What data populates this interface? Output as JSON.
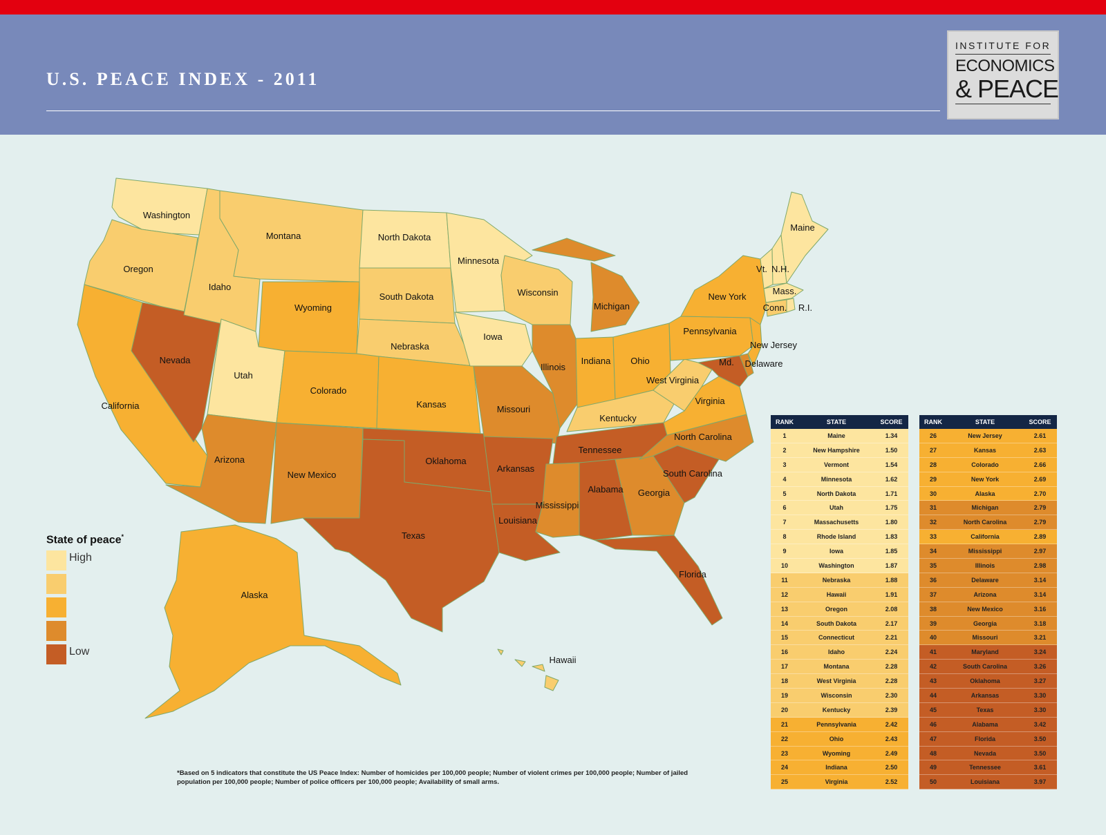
{
  "header": {
    "title": "U.S. PEACE INDEX - 2011",
    "logo": {
      "line1": "INSTITUTE FOR",
      "line2": "ECONOMICS",
      "line3": "& PEACE"
    }
  },
  "colors": {
    "top_bar": "#e3000f",
    "header_band": "#7889ba",
    "background": "#e3efee",
    "table_header": "#142645",
    "tier_1": "#fde59f",
    "tier_2": "#f9cd6e",
    "tier_3": "#f7b032",
    "tier_4": "#de8b2c",
    "tier_5": "#c45d25"
  },
  "legend": {
    "title": "State of peace",
    "title_marker": "*",
    "items": [
      {
        "label": "High",
        "color": "#fde59f"
      },
      {
        "label": "",
        "color": "#f9cd6e"
      },
      {
        "label": "",
        "color": "#f7b032"
      },
      {
        "label": "",
        "color": "#de8b2c"
      },
      {
        "label": "Low",
        "color": "#c45d25"
      }
    ]
  },
  "map_labels": [
    "Washington",
    "Oregon",
    "California",
    "Nevada",
    "Idaho",
    "Montana",
    "Wyoming",
    "Utah",
    "Arizona",
    "Colorado",
    "New Mexico",
    "North Dakota",
    "South Dakota",
    "Nebraska",
    "Kansas",
    "Oklahoma",
    "Texas",
    "Minnesota",
    "Iowa",
    "Missouri",
    "Arkansas",
    "Louisiana",
    "Wisconsin",
    "Illinois",
    "Michigan",
    "Indiana",
    "Ohio",
    "Kentucky",
    "Tennessee",
    "Mississippi",
    "Alabama",
    "Georgia",
    "Florida",
    "South Carolina",
    "North Carolina",
    "Virginia",
    "West Virginia",
    "Pennsylvania",
    "New York",
    "Maine",
    "Vt.",
    "N.H.",
    "Mass.",
    "Conn.",
    "R.I.",
    "New Jersey",
    "Delaware",
    "Md.",
    "Alaska",
    "Hawaii"
  ],
  "table": {
    "headers": {
      "rank": "RANK",
      "state": "STATE",
      "score": "SCORE"
    },
    "rows": [
      {
        "rank": "1",
        "state": "Maine",
        "score": "1.34",
        "tier": 1
      },
      {
        "rank": "2",
        "state": "New Hampshire",
        "score": "1.50",
        "tier": 1
      },
      {
        "rank": "3",
        "state": "Vermont",
        "score": "1.54",
        "tier": 1
      },
      {
        "rank": "4",
        "state": "Minnesota",
        "score": "1.62",
        "tier": 1
      },
      {
        "rank": "5",
        "state": "North Dakota",
        "score": "1.71",
        "tier": 1
      },
      {
        "rank": "6",
        "state": "Utah",
        "score": "1.75",
        "tier": 1
      },
      {
        "rank": "7",
        "state": "Massachusetts",
        "score": "1.80",
        "tier": 1
      },
      {
        "rank": "8",
        "state": "Rhode Island",
        "score": "1.83",
        "tier": 1
      },
      {
        "rank": "9",
        "state": "Iowa",
        "score": "1.85",
        "tier": 1
      },
      {
        "rank": "10",
        "state": "Washington",
        "score": "1.87",
        "tier": 1
      },
      {
        "rank": "11",
        "state": "Nebraska",
        "score": "1.88",
        "tier": 2
      },
      {
        "rank": "12",
        "state": "Hawaii",
        "score": "1.91",
        "tier": 2
      },
      {
        "rank": "13",
        "state": "Oregon",
        "score": "2.08",
        "tier": 2
      },
      {
        "rank": "14",
        "state": "South Dakota",
        "score": "2.17",
        "tier": 2
      },
      {
        "rank": "15",
        "state": "Connecticut",
        "score": "2.21",
        "tier": 2
      },
      {
        "rank": "16",
        "state": "Idaho",
        "score": "2.24",
        "tier": 2
      },
      {
        "rank": "17",
        "state": "Montana",
        "score": "2.28",
        "tier": 2
      },
      {
        "rank": "18",
        "state": "West Virginia",
        "score": "2.28",
        "tier": 2
      },
      {
        "rank": "19",
        "state": "Wisconsin",
        "score": "2.30",
        "tier": 2
      },
      {
        "rank": "20",
        "state": "Kentucky",
        "score": "2.39",
        "tier": 2
      },
      {
        "rank": "21",
        "state": "Pennsylvania",
        "score": "2.42",
        "tier": 3
      },
      {
        "rank": "22",
        "state": "Ohio",
        "score": "2.43",
        "tier": 3
      },
      {
        "rank": "23",
        "state": "Wyoming",
        "score": "2.49",
        "tier": 3
      },
      {
        "rank": "24",
        "state": "Indiana",
        "score": "2.50",
        "tier": 3
      },
      {
        "rank": "25",
        "state": "Virginia",
        "score": "2.52",
        "tier": 3
      },
      {
        "rank": "26",
        "state": "New Jersey",
        "score": "2.61",
        "tier": 3
      },
      {
        "rank": "27",
        "state": "Kansas",
        "score": "2.63",
        "tier": 3
      },
      {
        "rank": "28",
        "state": "Colorado",
        "score": "2.66",
        "tier": 3
      },
      {
        "rank": "29",
        "state": "New York",
        "score": "2.69",
        "tier": 3
      },
      {
        "rank": "30",
        "state": "Alaska",
        "score": "2.70",
        "tier": 3
      },
      {
        "rank": "31",
        "state": "Michigan",
        "score": "2.79",
        "tier": 4
      },
      {
        "rank": "32",
        "state": "North Carolina",
        "score": "2.79",
        "tier": 4
      },
      {
        "rank": "33",
        "state": "California",
        "score": "2.89",
        "tier": 3
      },
      {
        "rank": "34",
        "state": "Mississippi",
        "score": "2.97",
        "tier": 4
      },
      {
        "rank": "35",
        "state": "Illinois",
        "score": "2.98",
        "tier": 4
      },
      {
        "rank": "36",
        "state": "Delaware",
        "score": "3.14",
        "tier": 4
      },
      {
        "rank": "37",
        "state": "Arizona",
        "score": "3.14",
        "tier": 4
      },
      {
        "rank": "38",
        "state": "New Mexico",
        "score": "3.16",
        "tier": 4
      },
      {
        "rank": "39",
        "state": "Georgia",
        "score": "3.18",
        "tier": 4
      },
      {
        "rank": "40",
        "state": "Missouri",
        "score": "3.21",
        "tier": 4
      },
      {
        "rank": "41",
        "state": "Maryland",
        "score": "3.24",
        "tier": 5
      },
      {
        "rank": "42",
        "state": "South Carolina",
        "score": "3.26",
        "tier": 5
      },
      {
        "rank": "43",
        "state": "Oklahoma",
        "score": "3.27",
        "tier": 5
      },
      {
        "rank": "44",
        "state": "Arkansas",
        "score": "3.30",
        "tier": 5
      },
      {
        "rank": "45",
        "state": "Texas",
        "score": "3.30",
        "tier": 5
      },
      {
        "rank": "46",
        "state": "Alabama",
        "score": "3.42",
        "tier": 5
      },
      {
        "rank": "47",
        "state": "Florida",
        "score": "3.50",
        "tier": 5
      },
      {
        "rank": "48",
        "state": "Nevada",
        "score": "3.50",
        "tier": 5
      },
      {
        "rank": "49",
        "state": "Tennessee",
        "score": "3.61",
        "tier": 5
      },
      {
        "rank": "50",
        "state": "Louisiana",
        "score": "3.97",
        "tier": 5
      }
    ]
  },
  "footnote": "*Based on 5 indicators that constitute the US Peace Index: Number of homicides per 100,000 people; Number of violent crimes per 100,000 people; Number of jailed population per 100,000 people; Number of police officers per 100,000 people; Availability of small arms."
}
